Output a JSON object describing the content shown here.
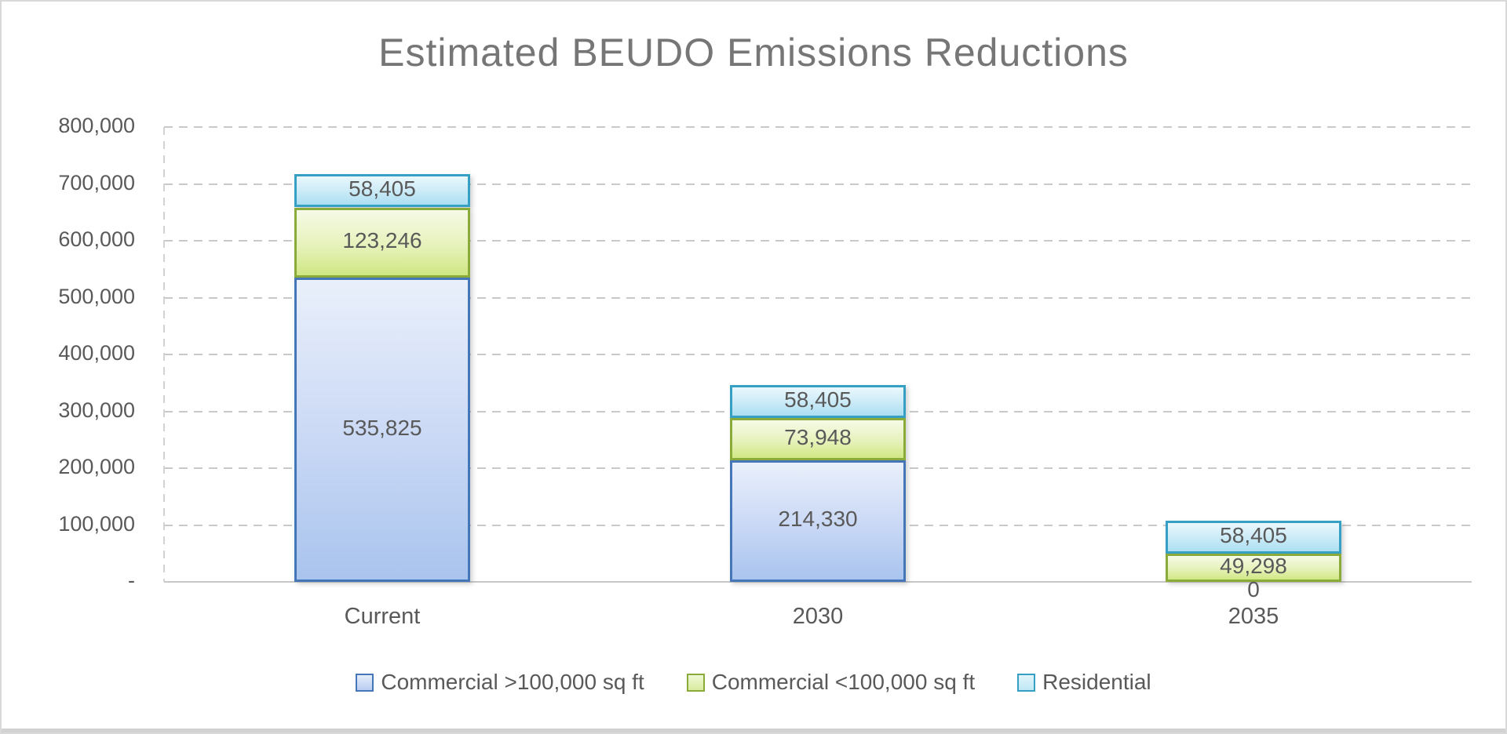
{
  "window": {
    "background": "#ffffff",
    "frame_border_color": "#d9d9d9"
  },
  "chart_data": {
    "type": "bar",
    "stacked": true,
    "title": "Estimated BEUDO Emissions Reductions",
    "title_color": "#767676",
    "categories": [
      "Current",
      "2030",
      "2035"
    ],
    "series": [
      {
        "name": "Commercial >100,000 sq ft",
        "border_color": "#4576b8",
        "fill_color": "#b9cdf1",
        "values": [
          535825,
          214330,
          0
        ],
        "value_labels": [
          "535,825",
          "214,330",
          "0"
        ]
      },
      {
        "name": "Commercial <100,000 sq ft",
        "border_color": "#8aab3a",
        "fill_color": "#dcee9f",
        "values": [
          123246,
          73948,
          49298
        ],
        "value_labels": [
          "123,246",
          "73,948",
          "49,298"
        ]
      },
      {
        "name": "Residential",
        "border_color": "#35a0c3",
        "fill_color": "#bfe8f5",
        "values": [
          58405,
          58405,
          58405
        ],
        "value_labels": [
          "58,405",
          "58,405",
          "58,405"
        ]
      }
    ],
    "y_ticks": [
      {
        "value": 0,
        "label": "-"
      },
      {
        "value": 100000,
        "label": "100,000"
      },
      {
        "value": 200000,
        "label": "200,000"
      },
      {
        "value": 300000,
        "label": "300,000"
      },
      {
        "value": 400000,
        "label": "400,000"
      },
      {
        "value": 500000,
        "label": "500,000"
      },
      {
        "value": 600000,
        "label": "600,000"
      },
      {
        "value": 700000,
        "label": "700,000"
      },
      {
        "value": 800000,
        "label": "800,000"
      }
    ],
    "ylim": [
      0,
      800000
    ],
    "grid": "horizontal-dashed",
    "grid_color": "#c9c9c9",
    "axis_line_color": "#c7c7c7",
    "text_color": "#595959",
    "legend_position": "bottom"
  }
}
